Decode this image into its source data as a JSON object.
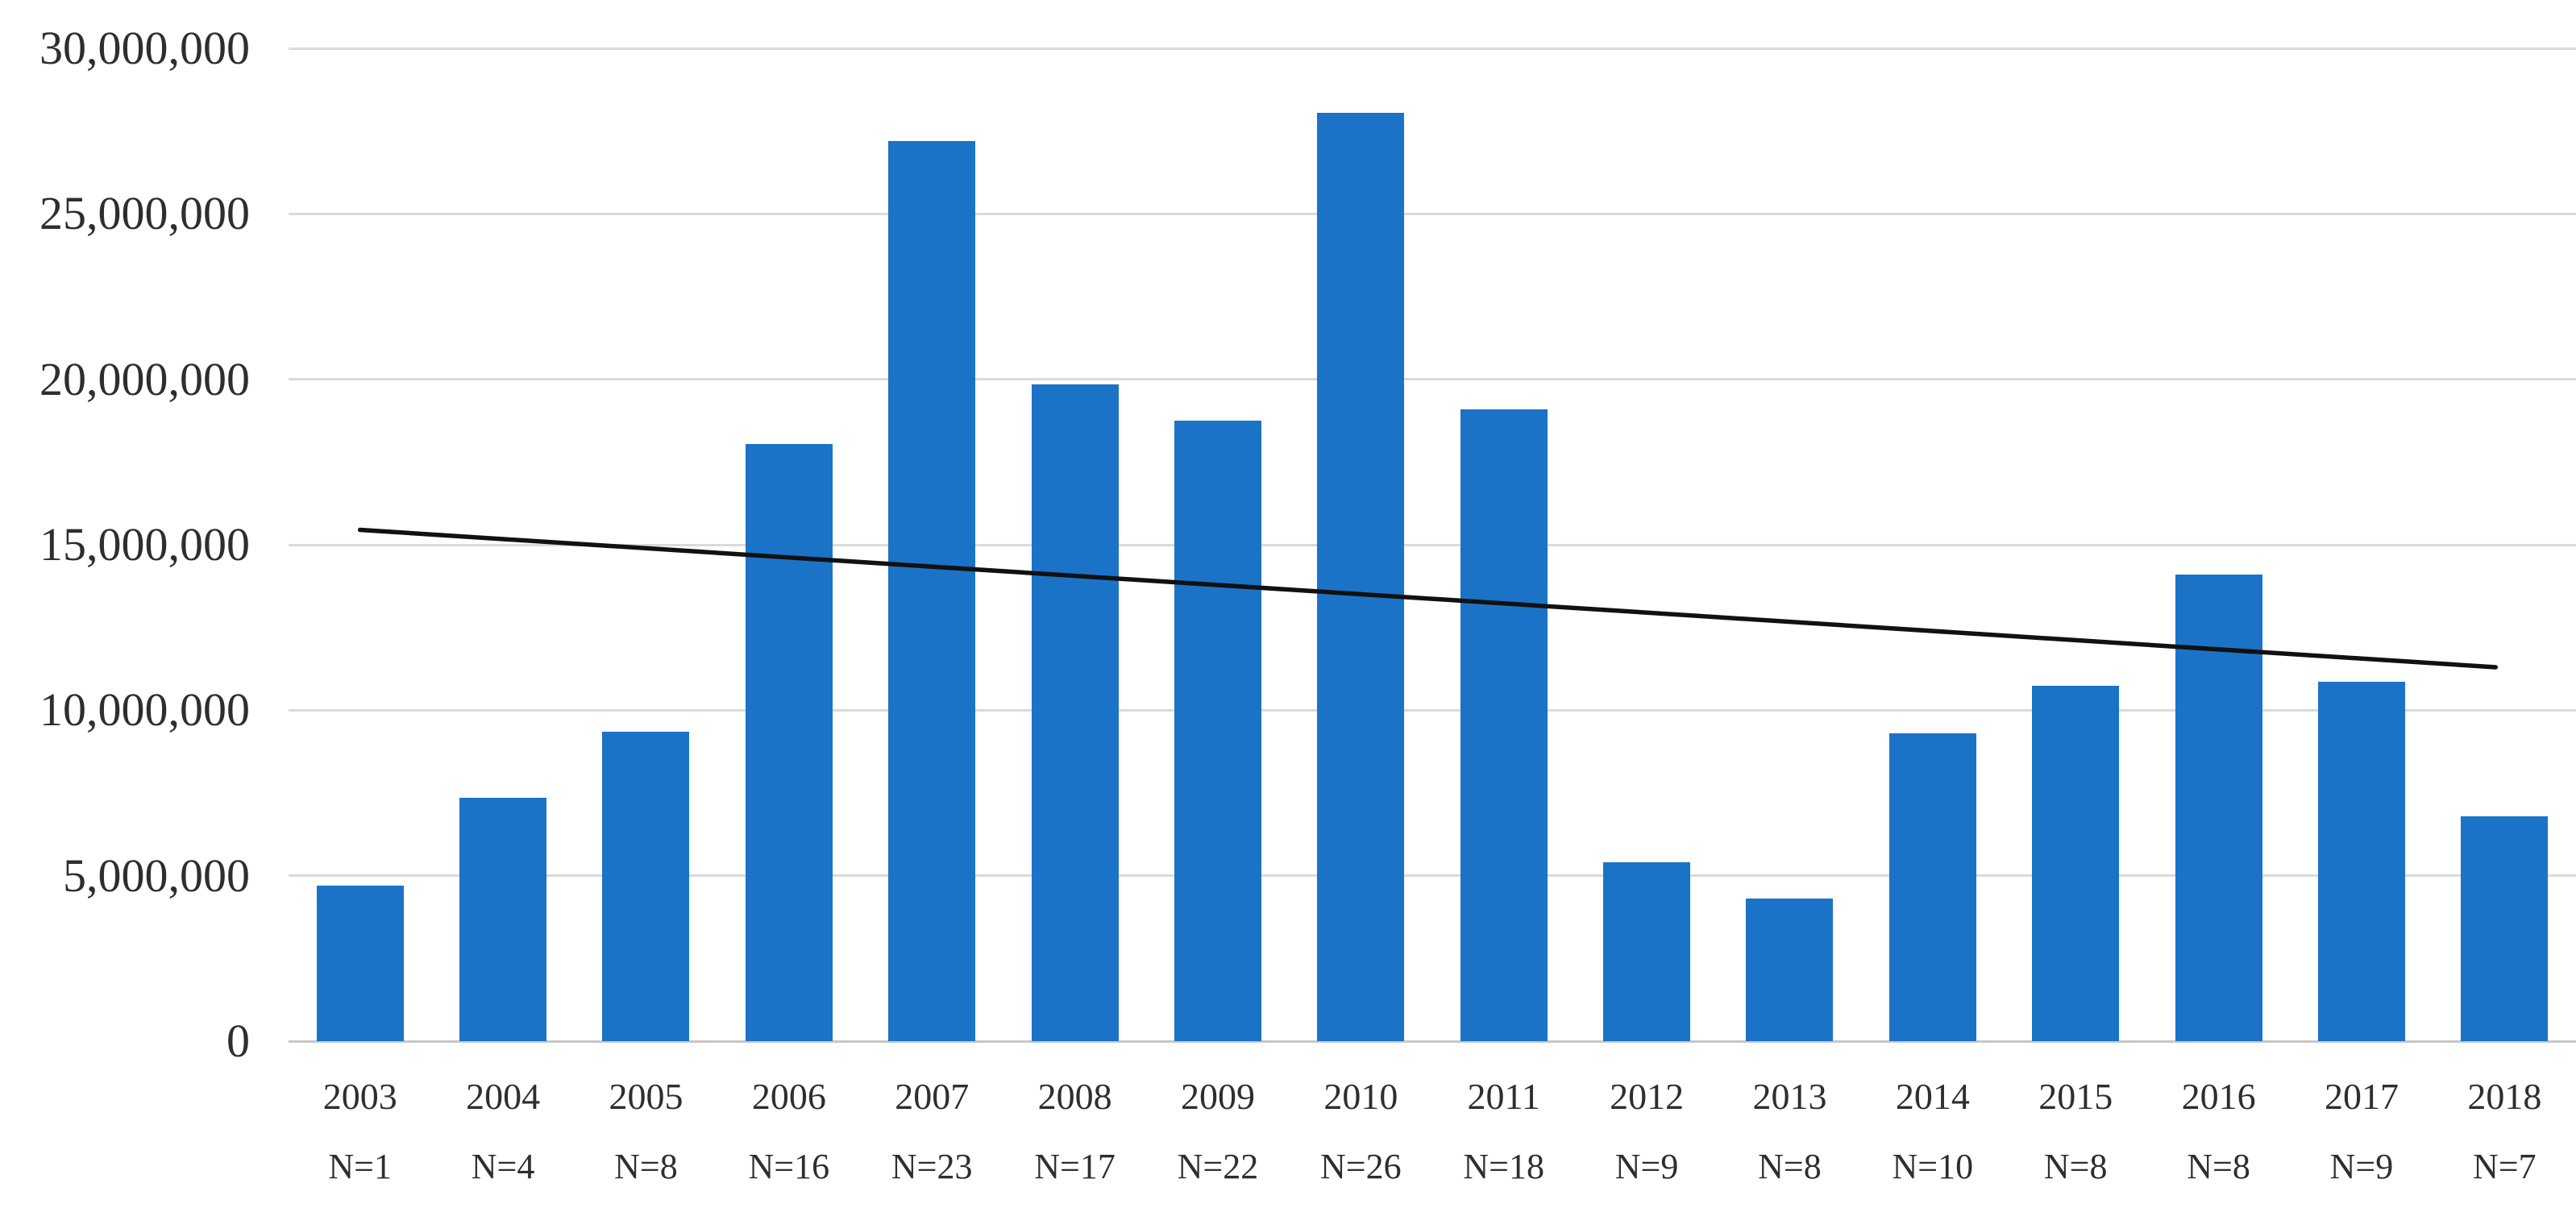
{
  "chart_data": {
    "type": "bar",
    "title": "",
    "xlabel": "",
    "ylabel": "",
    "categories": [
      "2003",
      "2004",
      "2005",
      "2006",
      "2007",
      "2008",
      "2009",
      "2010",
      "2011",
      "2012",
      "2013",
      "2014",
      "2015",
      "2016",
      "2017",
      "2018"
    ],
    "sample_size_labels": [
      "N=1",
      "N=4",
      "N=8",
      "N=16",
      "N=23",
      "N=17",
      "N=22",
      "N=26",
      "N=18",
      "N=9",
      "N=8",
      "N=10",
      "N=8",
      "N=8",
      "N=9",
      "N=7"
    ],
    "values": [
      4700000,
      7350000,
      9350000,
      18050000,
      27200000,
      19850000,
      18750000,
      28050000,
      19100000,
      5400000,
      4300000,
      9300000,
      10750000,
      14100000,
      10850000,
      6800000
    ],
    "y_ticks": [
      "30,000,000",
      "25,000,000",
      "20,000,000",
      "15,000,000",
      "10,000,000",
      "5,000,000",
      "0"
    ],
    "y_tick_values": [
      30000000,
      25000000,
      20000000,
      15000000,
      10000000,
      5000000,
      0
    ],
    "ylim": [
      0,
      30000000
    ],
    "grid": true,
    "legend": "none",
    "trendline": {
      "type": "linear",
      "start_category": "2003",
      "end_category": "2018",
      "start_value": 15450000,
      "end_value": 11300000
    },
    "colors": {
      "bar": "#1b73c8",
      "trendline": "#111111",
      "gridline": "#dadada",
      "axis_line": "#c8c6c6",
      "label": "#2e2e2e"
    }
  }
}
